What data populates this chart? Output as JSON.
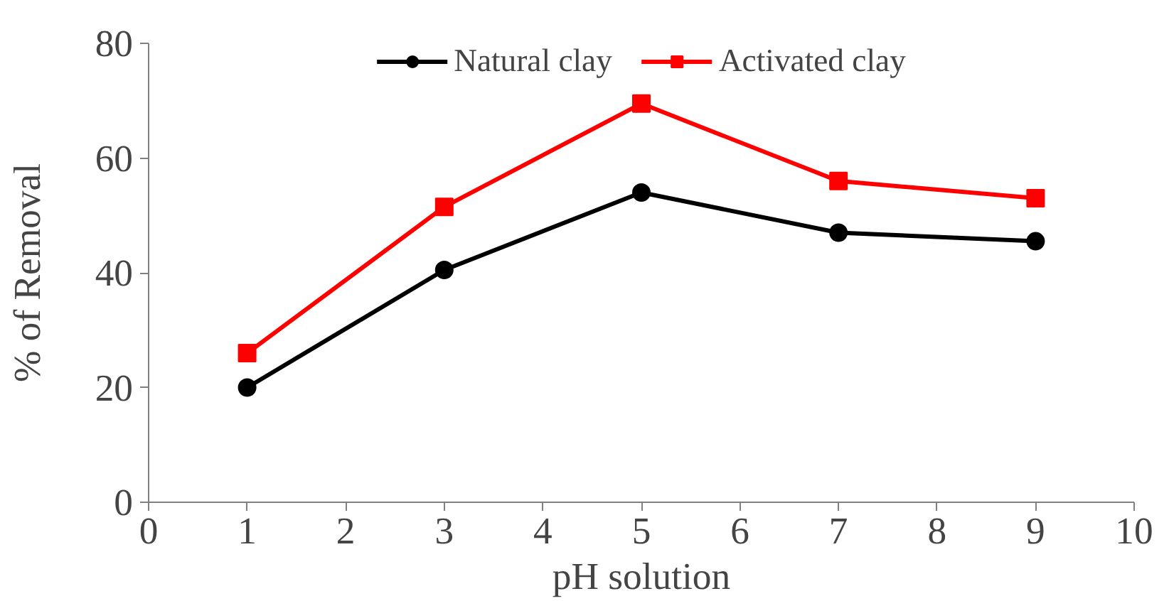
{
  "chart_data": {
    "type": "line",
    "xlabel": "pH solution",
    "ylabel": "% of Removal",
    "x": [
      1,
      3,
      5,
      7,
      9
    ],
    "series": [
      {
        "name": "Natural clay",
        "color": "#000000",
        "marker": "circle",
        "values": [
          20,
          40.5,
          54,
          47,
          45.5
        ]
      },
      {
        "name": "Activated clay",
        "color": "#ff0000",
        "marker": "square",
        "values": [
          26,
          51.5,
          69.5,
          56,
          53
        ]
      }
    ],
    "xlim": [
      0,
      10
    ],
    "xticks": [
      0,
      1,
      2,
      3,
      4,
      5,
      6,
      7,
      8,
      9,
      10
    ],
    "ylim": [
      0,
      80
    ],
    "yticks": [
      0,
      20,
      40,
      60,
      80
    ],
    "grid": false,
    "legend": "top",
    "line_style": "solid"
  }
}
